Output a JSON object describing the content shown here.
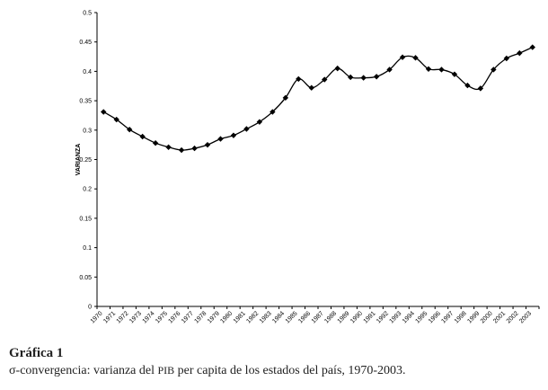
{
  "chart_data": {
    "type": "line",
    "title": "",
    "xlabel": "",
    "ylabel": "VARIANZA",
    "ylim": [
      0,
      0.5
    ],
    "yticks": [
      "0",
      "0.05",
      "0.1",
      "0.15",
      "0.2",
      "0.25",
      "0.3",
      "0.35",
      "0.4",
      "0.45",
      "0.5"
    ],
    "grid": false,
    "categories": [
      "1970",
      "1971",
      "1972",
      "1973",
      "1974",
      "1975",
      "1976",
      "1977",
      "1978",
      "1979",
      "1980",
      "1981",
      "1982",
      "1983",
      "1984",
      "1985",
      "1986",
      "1987",
      "1988",
      "1989",
      "1990",
      "1991",
      "1992",
      "1993",
      "1994",
      "1995",
      "1996",
      "1997",
      "1998",
      "1999",
      "2000",
      "2001",
      "2002",
      "2003"
    ],
    "series": [
      {
        "name": "Varianza",
        "values": [
          0.331,
          0.318,
          0.301,
          0.289,
          0.278,
          0.271,
          0.266,
          0.269,
          0.275,
          0.285,
          0.291,
          0.302,
          0.314,
          0.331,
          0.355,
          0.387,
          0.372,
          0.386,
          0.405,
          0.39,
          0.389,
          0.391,
          0.403,
          0.424,
          0.423,
          0.404,
          0.403,
          0.395,
          0.376,
          0.371,
          0.403,
          0.422,
          0.431,
          0.441
        ]
      }
    ],
    "color": "#000000"
  },
  "caption": {
    "title": "Gráfica 1",
    "text_before": "σ-convergencia: varianza del ",
    "acronym": "PIB",
    "text_after": " per capita de los estados del país, 1970-2003."
  }
}
